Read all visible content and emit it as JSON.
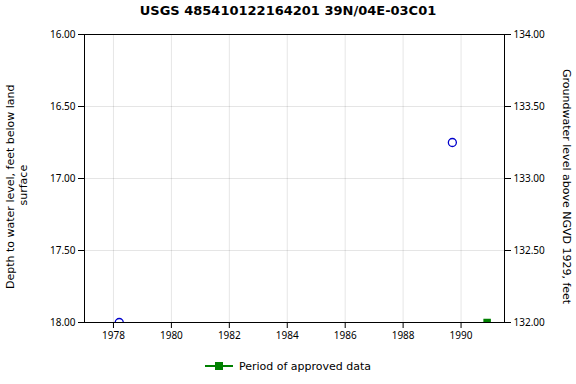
{
  "chart_data": {
    "type": "scatter",
    "title": "USGS 485410122164201 39N/04E-03C01",
    "ylabel": "Depth to water level, feet below land\n surface",
    "y2label": "Groundwater level above NGVD 1929, feet",
    "xlim": [
      1977.0,
      1991.5
    ],
    "xticks": [
      1978,
      1980,
      1982,
      1984,
      1986,
      1988,
      1990
    ],
    "ylim": [
      18.0,
      16.0
    ],
    "yticks": [
      {
        "value": 16.0,
        "label": "16.00"
      },
      {
        "value": 16.5,
        "label": "16.50"
      },
      {
        "value": 17.0,
        "label": "17.00"
      },
      {
        "value": 17.5,
        "label": "17.50"
      },
      {
        "value": 18.0,
        "label": "18.00"
      }
    ],
    "y2lim": [
      132.0,
      134.0
    ],
    "y2ticks": [
      {
        "value": 134.0,
        "label": "134.00"
      },
      {
        "value": 133.5,
        "label": "133.50"
      },
      {
        "value": 133.0,
        "label": "133.00"
      },
      {
        "value": 132.5,
        "label": "132.50"
      },
      {
        "value": 132.0,
        "label": "132.00"
      }
    ],
    "grid": true,
    "legend": "bottom",
    "series": [
      {
        "x": [
          1978.2,
          1989.7
        ],
        "values": [
          18.0,
          16.75
        ],
        "color": "#0000cc",
        "marker": "circle"
      },
      {
        "name": "Period of approved data",
        "x": [
          1990.9
        ],
        "values": [
          18.0
        ],
        "color": "#008000",
        "marker": "square"
      }
    ]
  }
}
